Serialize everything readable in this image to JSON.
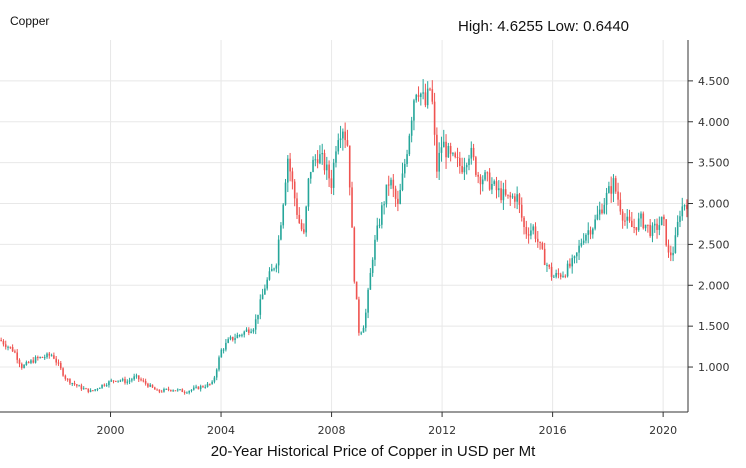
{
  "header": {
    "title": "Copper",
    "high_label": "High:",
    "high_value": "4.6255",
    "low_label": "Low:",
    "low_value": "0.6440"
  },
  "caption": "20-Year Historical Price of Copper in USD per Mt",
  "colors": {
    "up": "#26a69a",
    "down": "#ef5350",
    "grid": "#e8e8e8",
    "axis": "#333333"
  },
  "chart_data": {
    "type": "candlestick",
    "title": "Copper",
    "subtitle": "High: 4.6255 Low: 0.6440",
    "xlabel": "20-Year Historical Price of Copper in USD per Mt",
    "ylabel": "",
    "xlim": [
      1996.0,
      2020.9
    ],
    "ylim": [
      0.45,
      5.0
    ],
    "x_ticks": [
      2000,
      2004,
      2008,
      2012,
      2016,
      2020
    ],
    "y_ticks": [
      1.0,
      1.5,
      2.0,
      2.5,
      3.0,
      3.5,
      4.0,
      4.5
    ],
    "y_tick_labels": [
      "1.000",
      "1.500",
      "2.000",
      "2.500",
      "3.000",
      "3.500",
      "4.000",
      "4.500"
    ],
    "y_axis_side": "right",
    "grid": true,
    "high": 4.6255,
    "low": 0.644,
    "series": [
      {
        "x": [
          1996.0,
          1996.5,
          1996.8,
          1997.3,
          1997.9,
          1998.4,
          1998.9,
          1999.3,
          1999.7,
          2000.2,
          2000.6,
          2000.9,
          2001.4,
          2001.7,
          2002.2,
          2002.7,
          2003.2,
          2003.7,
          2004.0,
          2004.3,
          2004.7,
          2005.2,
          2005.6,
          2006.0,
          2006.3,
          2006.4,
          2006.6,
          2006.8,
          2007.0,
          2007.2,
          2007.5,
          2007.7,
          2008.0,
          2008.2,
          2008.4,
          2008.6,
          2008.8,
          2009.0,
          2009.2,
          2009.5,
          2009.8,
          2010.1,
          2010.4,
          2010.7,
          2011.0,
          2011.1,
          2011.4,
          2011.6,
          2011.8,
          2012.0,
          2012.3,
          2012.7,
          2013.0,
          2013.3,
          2013.6,
          2014.0,
          2014.4,
          2014.7,
          2015.0,
          2015.3,
          2015.6,
          2016.0,
          2016.4,
          2016.8,
          2017.1,
          2017.5,
          2017.9,
          2018.2,
          2018.6,
          2018.9,
          2019.2,
          2019.6,
          2020.0,
          2020.2,
          2020.4,
          2020.6,
          2020.8
        ],
        "y": [
          1.33,
          1.2,
          1.0,
          1.1,
          1.15,
          0.85,
          0.75,
          0.7,
          0.78,
          0.85,
          0.82,
          0.88,
          0.77,
          0.7,
          0.73,
          0.7,
          0.75,
          0.8,
          1.2,
          1.33,
          1.4,
          1.5,
          2.0,
          2.3,
          3.2,
          3.6,
          3.2,
          2.8,
          2.6,
          3.4,
          3.6,
          3.5,
          3.25,
          3.85,
          3.95,
          3.7,
          2.2,
          1.4,
          1.55,
          2.4,
          2.9,
          3.3,
          2.95,
          3.6,
          4.35,
          4.45,
          4.2,
          4.45,
          3.4,
          3.75,
          3.55,
          3.45,
          3.65,
          3.35,
          3.3,
          3.15,
          3.05,
          3.1,
          2.65,
          2.7,
          2.4,
          2.1,
          2.15,
          2.3,
          2.6,
          2.75,
          3.05,
          3.25,
          2.8,
          2.7,
          2.8,
          2.65,
          2.8,
          2.35,
          2.45,
          2.9,
          3.02
        ]
      }
    ]
  }
}
